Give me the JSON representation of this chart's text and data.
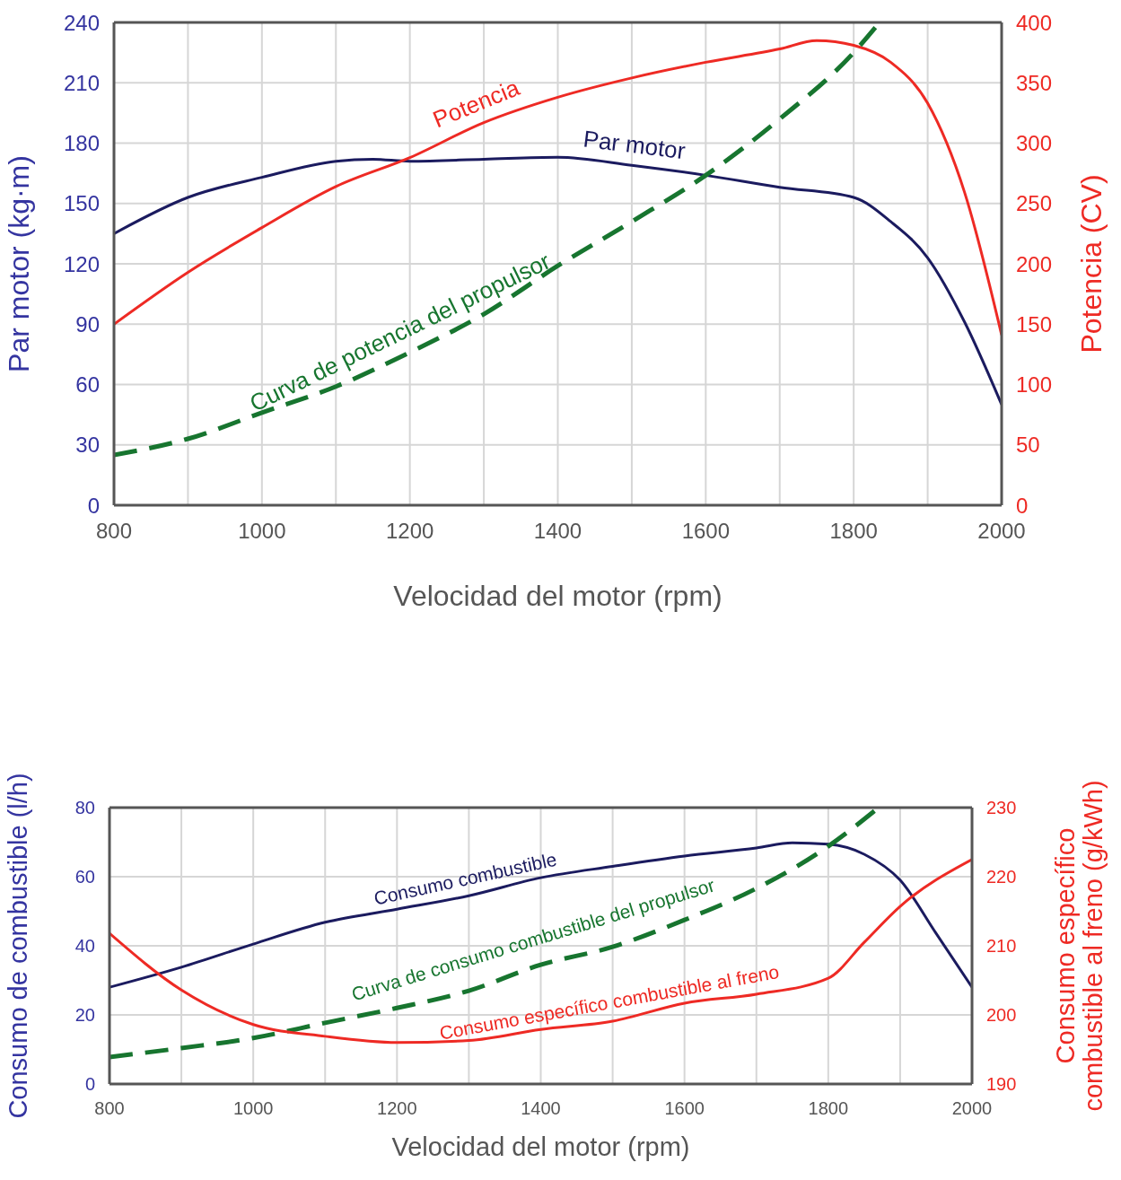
{
  "chart_data": [
    {
      "type": "line",
      "xlabel": "Velocidad del motor (rpm)",
      "ylabel": "Par motor (kg·m)",
      "y2label": "Potencia (CV)",
      "xlim": [
        800,
        2000
      ],
      "xticks": [
        800,
        {
          "value": 900,
          "label": null
        },
        1000,
        {
          "value": 1100,
          "label": null
        },
        1200,
        {
          "value": 1300,
          "label": null
        },
        1400,
        {
          "value": 1500,
          "label": null
        },
        1600,
        {
          "value": 1700,
          "label": null
        },
        1800,
        {
          "value": 1900,
          "label": null
        },
        2000
      ],
      "ylim": [
        0,
        240
      ],
      "yticks": [
        0,
        30,
        60,
        90,
        120,
        150,
        180,
        210,
        240
      ],
      "y2lim": [
        0,
        400
      ],
      "y2ticks": [
        0,
        50,
        100,
        150,
        200,
        250,
        300,
        350,
        400
      ],
      "grid": true,
      "marker": "none",
      "line_style": "solid",
      "series": [
        {
          "name": "Par motor",
          "color": "#1b1b5f",
          "x": [
            800,
            900,
            1000,
            1100,
            1150,
            1200,
            1300,
            1400,
            1500,
            1600,
            1700,
            1800,
            1850,
            1900,
            1950,
            2000
          ],
          "values": [
            135,
            153,
            163,
            171,
            172,
            171,
            172,
            173,
            169,
            164,
            158,
            153,
            141,
            123,
            91,
            50
          ]
        },
        {
          "name": "Potencia",
          "color": "#ee2a24",
          "axis": "y2",
          "x": [
            800,
            900,
            1000,
            1100,
            1200,
            1300,
            1400,
            1500,
            1600,
            1700,
            1750,
            1800,
            1850,
            1900,
            1950,
            2000
          ],
          "values": [
            150,
            193,
            230,
            264,
            288,
            317,
            338,
            354,
            367,
            378,
            385,
            381,
            367,
            333,
            259,
            141
          ]
        },
        {
          "name": "Curva de potencia del propulsor",
          "color": "#17752f",
          "line_style": "dashed",
          "x": [
            800,
            900,
            1000,
            1100,
            1200,
            1300,
            1400,
            1500,
            1600,
            1700,
            1800,
            1835
          ],
          "values": [
            25,
            33,
            46,
            59,
            76,
            95,
            119,
            141,
            164,
            192,
            225,
            240
          ]
        }
      ]
    },
    {
      "type": "line",
      "xlabel": "Velocidad del motor (rpm)",
      "ylabel": "Consumo de combustible (l/h)",
      "y2label": "Consumo específico combustible al freno (g/kWh)",
      "xlim": [
        800,
        2000
      ],
      "xticks": [
        800,
        {
          "value": 900,
          "label": null
        },
        1000,
        {
          "value": 1100,
          "label": null
        },
        1200,
        {
          "value": 1300,
          "label": null
        },
        1400,
        {
          "value": 1500,
          "label": null
        },
        1600,
        {
          "value": 1700,
          "label": null
        },
        1800,
        {
          "value": 1900,
          "label": null
        },
        2000
      ],
      "ylim": [
        0,
        80
      ],
      "yticks": [
        0,
        20,
        40,
        60,
        80
      ],
      "y2lim": [
        190,
        230
      ],
      "y2ticks": [
        190,
        200,
        210,
        220,
        230
      ],
      "grid": true,
      "marker": "none",
      "line_style": "solid",
      "series": [
        {
          "name": "Consumo combustible",
          "color": "#1b1b5f",
          "x": [
            800,
            900,
            1000,
            1100,
            1200,
            1300,
            1400,
            1500,
            1600,
            1700,
            1750,
            1800,
            1850,
            1900,
            1950,
            2000
          ],
          "values": [
            28,
            33.8,
            40.5,
            46.8,
            50.6,
            54.5,
            59.7,
            63,
            66,
            68.3,
            69.8,
            69.4,
            66.5,
            59,
            43.6,
            28
          ]
        },
        {
          "name": "Curva de consumo combustible del propulsor",
          "color": "#17752f",
          "line_style": "dashed",
          "x": [
            800,
            900,
            1000,
            1100,
            1200,
            1300,
            1400,
            1500,
            1600,
            1700,
            1800,
            1870
          ],
          "values": [
            7.8,
            10.4,
            13.3,
            17.7,
            22,
            27,
            34.5,
            39.7,
            47.5,
            56.6,
            68.8,
            80
          ]
        },
        {
          "name": "Consumo específico combustible al freno",
          "color": "#ee2a24",
          "axis": "y2",
          "x": [
            800,
            900,
            1000,
            1100,
            1200,
            1300,
            1400,
            1500,
            1600,
            1700,
            1800,
            1850,
            1900,
            2000
          ],
          "values": [
            211.8,
            203.6,
            198.6,
            196.9,
            196,
            196.3,
            197.9,
            199.1,
            201.7,
            203,
            205.3,
            210.5,
            215.7,
            222.5
          ]
        }
      ]
    }
  ]
}
